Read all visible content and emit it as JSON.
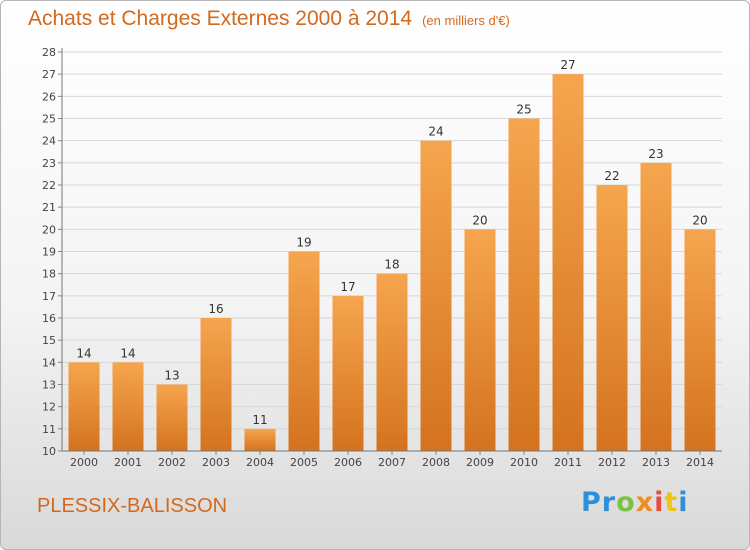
{
  "header": {
    "title": "Achats et Charges Externes 2000 à 2014",
    "subtitle": "(en milliers d'€)"
  },
  "footer": {
    "town": "PLESSIX-BALISSON",
    "logo_letters": [
      "P",
      "r",
      "o",
      "x",
      "i",
      "t",
      "i"
    ]
  },
  "colors": {
    "accent": "#d2691e",
    "bar_top": "#f6a54f",
    "bar_bottom": "#d4731f",
    "logo": [
      "#2f8fd8",
      "#2f8fd8",
      "#7cc242",
      "#f28a1e",
      "#e84c3d",
      "#f2c40f",
      "#2f8fd8"
    ]
  },
  "chart_data": {
    "type": "bar",
    "title": "Achats et Charges Externes 2000 à 2014",
    "subtitle": "(en milliers d'€)",
    "categories": [
      "2000",
      "2001",
      "2002",
      "2003",
      "2004",
      "2005",
      "2006",
      "2007",
      "2008",
      "2009",
      "2010",
      "2011",
      "2012",
      "2013",
      "2014"
    ],
    "values": [
      14,
      14,
      13,
      16,
      11,
      19,
      17,
      18,
      24,
      20,
      25,
      27,
      22,
      23,
      20
    ],
    "ylim": [
      10,
      28
    ],
    "yticks": [
      10,
      11,
      12,
      13,
      14,
      15,
      16,
      17,
      18,
      19,
      20,
      21,
      22,
      23,
      24,
      25,
      26,
      27,
      28
    ],
    "grid": true,
    "data_labels": true
  }
}
